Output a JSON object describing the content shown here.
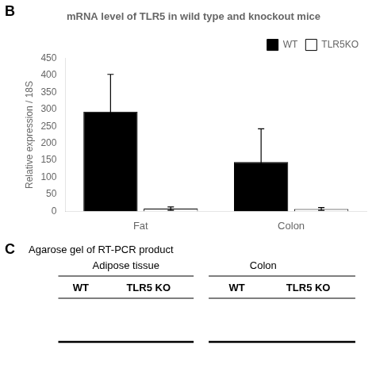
{
  "chart_data": {
    "type": "bar",
    "title": "mRNA level of TLR5 in wild type and knockout mice",
    "ylabel": "Relative expression / 18S",
    "categories": [
      "Fat",
      "Colon"
    ],
    "series": [
      {
        "name": "WT",
        "color": "#000000",
        "values": [
          293,
          145
        ],
        "errors": [
          110,
          98
        ]
      },
      {
        "name": "TLR5KO",
        "color": "#ffffff",
        "values": [
          8,
          7
        ],
        "errors": [
          5,
          4
        ]
      }
    ],
    "ylim": [
      0,
      450
    ],
    "yticks": [
      0,
      50,
      100,
      150,
      200,
      250,
      300,
      350,
      400,
      450
    ],
    "grid": false,
    "legend": "upper right",
    "annotations": [
      "B",
      "C",
      "Agarose gel of RT-PCR product",
      "Adipose tissue",
      "Colon",
      "WT",
      "TLR5 KO",
      "WT",
      "TLR5 KO"
    ]
  }
}
